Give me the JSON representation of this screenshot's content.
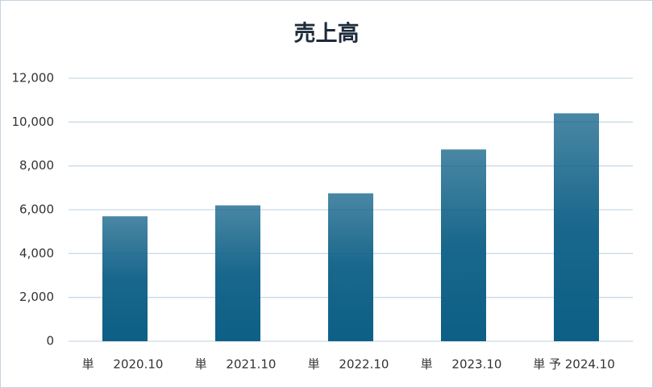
{
  "chart_data": {
    "type": "bar",
    "title": "売上高",
    "categories": [
      "単     2020.10",
      "単     2021.10",
      "単     2022.10",
      "単     2023.10",
      "単 予 2024.10"
    ],
    "values": [
      5700,
      6200,
      6750,
      8750,
      10400
    ],
    "color": "#0d5f86",
    "ylim": [
      0,
      12000
    ],
    "yticks": [
      0,
      {
        "value": 2000,
        "label": "2,000"
      },
      {
        "value": 4000,
        "label": "4,000"
      },
      {
        "value": 6000,
        "label": "6,000"
      },
      {
        "value": 8000,
        "label": "8,000"
      },
      {
        "value": 10000,
        "label": "10,000"
      },
      {
        "value": 12000,
        "label": "12,000"
      }
    ],
    "grid": true
  }
}
